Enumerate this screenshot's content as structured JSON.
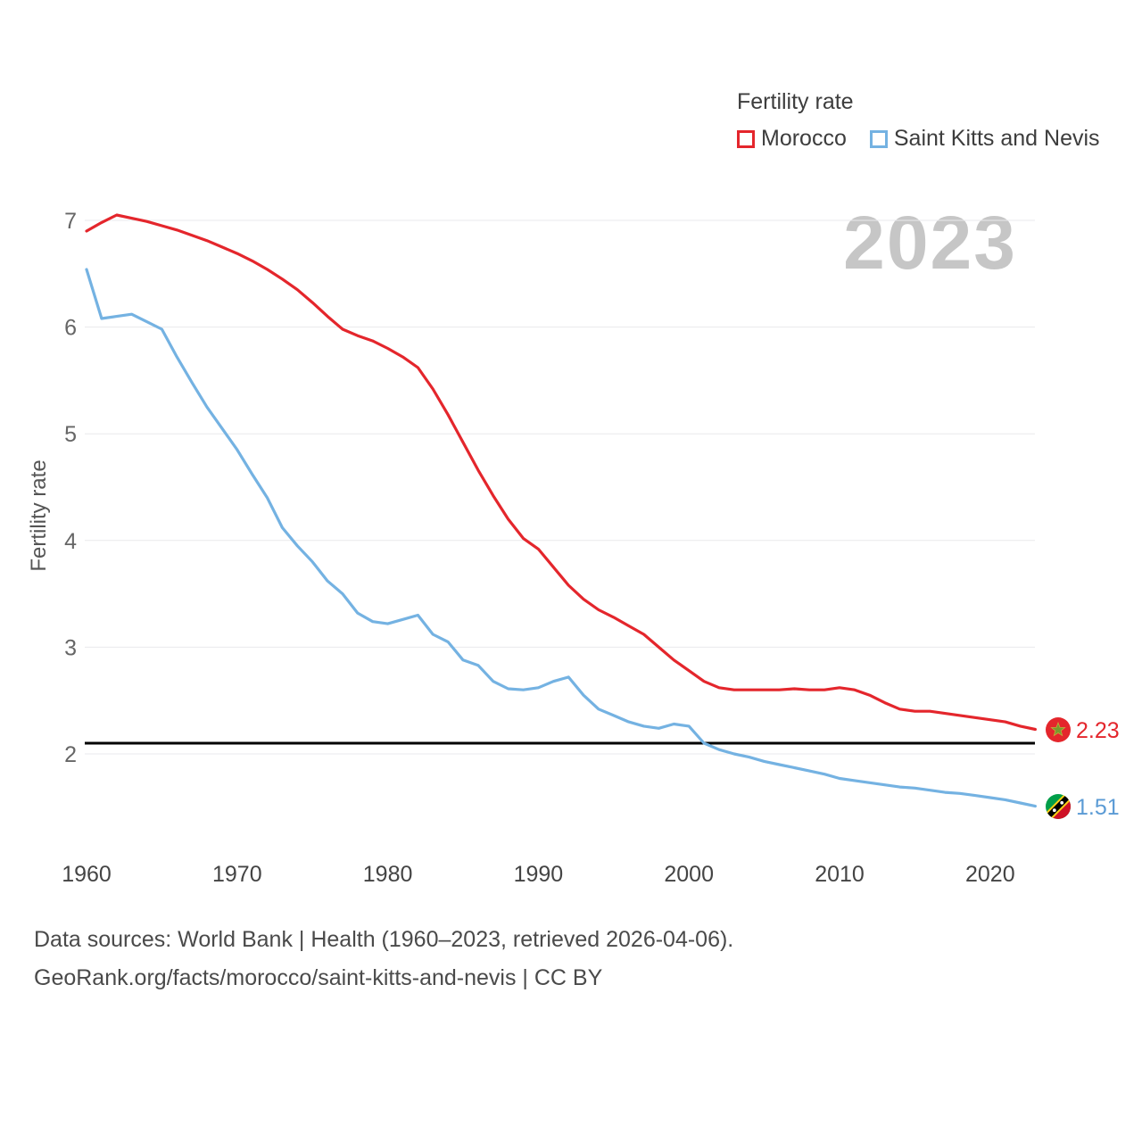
{
  "legend": {
    "title": "Fertility rate",
    "series": [
      {
        "label": "Morocco",
        "color": "#e4262c"
      },
      {
        "label": "Saint Kitts and Nevis",
        "color": "#74b2e2"
      }
    ]
  },
  "watermark": "2023",
  "y_axis_label": "Fertility rate",
  "end_labels": {
    "morocco": "2.23",
    "saint_kitts": "1.51"
  },
  "footer": {
    "line1": "Data sources: World Bank | Health (1960–2023, retrieved 2026-04-06).",
    "line2": "GeoRank.org/facts/morocco/saint-kitts-and-nevis | CC BY"
  },
  "chart_data": {
    "type": "line",
    "title": "Fertility rate",
    "xlabel": "",
    "ylabel": "Fertility rate",
    "ylim": [
      1.3,
      7.3
    ],
    "grid": true,
    "legend_position": "top-right",
    "x_ticks": [
      1960,
      1970,
      1980,
      1990,
      2000,
      2010,
      2020
    ],
    "y_ticks": [
      2,
      3,
      4,
      5,
      6,
      7
    ],
    "reference_line": {
      "value": 2.1,
      "color": "#000000"
    },
    "x": [
      1960,
      1961,
      1962,
      1963,
      1964,
      1965,
      1966,
      1967,
      1968,
      1969,
      1970,
      1971,
      1972,
      1973,
      1974,
      1975,
      1976,
      1977,
      1978,
      1979,
      1980,
      1981,
      1982,
      1983,
      1984,
      1985,
      1986,
      1987,
      1988,
      1989,
      1990,
      1991,
      1992,
      1993,
      1994,
      1995,
      1996,
      1997,
      1998,
      1999,
      2000,
      2001,
      2002,
      2003,
      2004,
      2005,
      2006,
      2007,
      2008,
      2009,
      2010,
      2011,
      2012,
      2013,
      2014,
      2015,
      2016,
      2017,
      2018,
      2019,
      2020,
      2021,
      2022,
      2023
    ],
    "series": [
      {
        "name": "Morocco",
        "color": "#e4262c",
        "final_value": 2.23,
        "values": [
          6.9,
          6.98,
          7.05,
          7.02,
          6.99,
          6.95,
          6.91,
          6.86,
          6.81,
          6.75,
          6.69,
          6.62,
          6.54,
          6.45,
          6.35,
          6.23,
          6.1,
          5.98,
          5.92,
          5.87,
          5.8,
          5.72,
          5.62,
          5.42,
          5.18,
          4.92,
          4.66,
          4.42,
          4.2,
          4.02,
          3.92,
          3.75,
          3.58,
          3.45,
          3.35,
          3.28,
          3.2,
          3.12,
          3.0,
          2.88,
          2.78,
          2.68,
          2.62,
          2.6,
          2.6,
          2.6,
          2.6,
          2.61,
          2.6,
          2.6,
          2.62,
          2.6,
          2.55,
          2.48,
          2.42,
          2.4,
          2.4,
          2.38,
          2.36,
          2.34,
          2.32,
          2.3,
          2.26,
          2.23
        ]
      },
      {
        "name": "Saint Kitts and Nevis",
        "color": "#74b2e2",
        "final_value": 1.51,
        "values": [
          6.54,
          6.08,
          6.1,
          6.12,
          6.05,
          5.98,
          5.72,
          5.48,
          5.25,
          5.05,
          4.85,
          4.62,
          4.4,
          4.12,
          3.95,
          3.8,
          3.62,
          3.5,
          3.32,
          3.24,
          3.22,
          3.26,
          3.3,
          3.12,
          3.05,
          2.88,
          2.83,
          2.68,
          2.61,
          2.6,
          2.62,
          2.68,
          2.72,
          2.55,
          2.42,
          2.36,
          2.3,
          2.26,
          2.24,
          2.28,
          2.26,
          2.1,
          2.04,
          2.0,
          1.97,
          1.93,
          1.9,
          1.87,
          1.84,
          1.81,
          1.77,
          1.75,
          1.73,
          1.71,
          1.69,
          1.68,
          1.66,
          1.64,
          1.63,
          1.61,
          1.59,
          1.57,
          1.54,
          1.51
        ]
      }
    ]
  }
}
